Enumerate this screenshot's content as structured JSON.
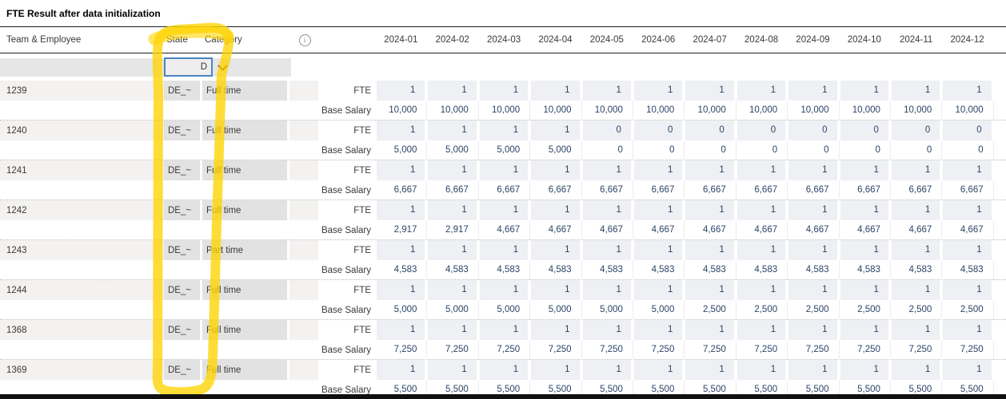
{
  "title": "FTE Result after data initialization",
  "columns": {
    "team": "Team & Employee",
    "state": "State",
    "category": "Category",
    "info_icon": "i"
  },
  "months": [
    "2024-01",
    "2024-02",
    "2024-03",
    "2024-04",
    "2024-05",
    "2024-06",
    "2024-07",
    "2024-08",
    "2024-09",
    "2024-10",
    "2024-11",
    "2024-12"
  ],
  "filter": {
    "value": "D"
  },
  "measures": {
    "fte": "FTE",
    "salary": "Base Salary"
  },
  "rows": [
    {
      "id": "1239",
      "state": "DE_~",
      "category": "Full time",
      "fte": [
        "1",
        "1",
        "1",
        "1",
        "1",
        "1",
        "1",
        "1",
        "1",
        "1",
        "1",
        "1"
      ],
      "base_salary": [
        "10,000",
        "10,000",
        "10,000",
        "10,000",
        "10,000",
        "10,000",
        "10,000",
        "10,000",
        "10,000",
        "10,000",
        "10,000",
        "10,000"
      ]
    },
    {
      "id": "1240",
      "state": "DE_~",
      "category": "Full time",
      "fte": [
        "1",
        "1",
        "1",
        "1",
        "0",
        "0",
        "0",
        "0",
        "0",
        "0",
        "0",
        "0"
      ],
      "base_salary": [
        "5,000",
        "5,000",
        "5,000",
        "5,000",
        "0",
        "0",
        "0",
        "0",
        "0",
        "0",
        "0",
        "0"
      ]
    },
    {
      "id": "1241",
      "state": "DE_~",
      "category": "Full time",
      "fte": [
        "1",
        "1",
        "1",
        "1",
        "1",
        "1",
        "1",
        "1",
        "1",
        "1",
        "1",
        "1"
      ],
      "base_salary": [
        "6,667",
        "6,667",
        "6,667",
        "6,667",
        "6,667",
        "6,667",
        "6,667",
        "6,667",
        "6,667",
        "6,667",
        "6,667",
        "6,667"
      ]
    },
    {
      "id": "1242",
      "state": "DE_~",
      "category": "Full time",
      "fte": [
        "1",
        "1",
        "1",
        "1",
        "1",
        "1",
        "1",
        "1",
        "1",
        "1",
        "1",
        "1"
      ],
      "base_salary": [
        "2,917",
        "2,917",
        "4,667",
        "4,667",
        "4,667",
        "4,667",
        "4,667",
        "4,667",
        "4,667",
        "4,667",
        "4,667",
        "4,667"
      ]
    },
    {
      "id": "1243",
      "state": "DE_~",
      "category": "Part time",
      "fte": [
        "1",
        "1",
        "1",
        "1",
        "1",
        "1",
        "1",
        "1",
        "1",
        "1",
        "1",
        "1"
      ],
      "base_salary": [
        "4,583",
        "4,583",
        "4,583",
        "4,583",
        "4,583",
        "4,583",
        "4,583",
        "4,583",
        "4,583",
        "4,583",
        "4,583",
        "4,583"
      ]
    },
    {
      "id": "1244",
      "state": "DE_~",
      "category": "Full time",
      "fte": [
        "1",
        "1",
        "1",
        "1",
        "1",
        "1",
        "1",
        "1",
        "1",
        "1",
        "1",
        "1"
      ],
      "base_salary": [
        "5,000",
        "5,000",
        "5,000",
        "5,000",
        "5,000",
        "5,000",
        "2,500",
        "2,500",
        "2,500",
        "2,500",
        "2,500",
        "2,500"
      ]
    },
    {
      "id": "1368",
      "state": "DE_~",
      "category": "Full time",
      "fte": [
        "1",
        "1",
        "1",
        "1",
        "1",
        "1",
        "1",
        "1",
        "1",
        "1",
        "1",
        "1"
      ],
      "base_salary": [
        "7,250",
        "7,250",
        "7,250",
        "7,250",
        "7,250",
        "7,250",
        "7,250",
        "7,250",
        "7,250",
        "7,250",
        "7,250",
        "7,250"
      ]
    },
    {
      "id": "1369",
      "state": "DE_~",
      "category": "Full time",
      "fte": [
        "1",
        "1",
        "1",
        "1",
        "1",
        "1",
        "1",
        "1",
        "1",
        "1",
        "1",
        "1"
      ],
      "base_salary": [
        "5,500",
        "5,500",
        "5,500",
        "5,500",
        "5,500",
        "5,500",
        "5,500",
        "5,500",
        "5,500",
        "5,500",
        "5,500",
        "5,500"
      ]
    }
  ],
  "annotation": {
    "color": "#ffd400"
  }
}
